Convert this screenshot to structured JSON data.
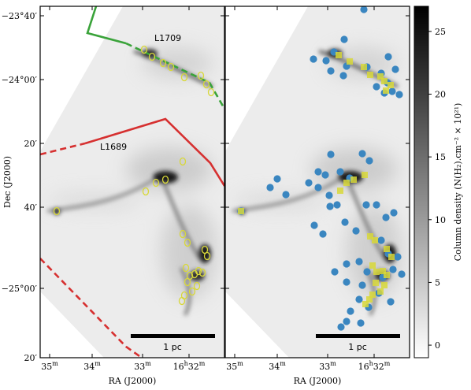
{
  "chart_data": {
    "type": "heatmap",
    "panels": [
      {
        "name": "left",
        "region_labels": [
          "L1709",
          "L1689"
        ],
        "scale_bar_label": "1 pc",
        "dense_cores": [
          [
            183,
            63
          ],
          [
            193,
            72
          ],
          [
            207,
            80
          ],
          [
            217,
            85
          ],
          [
            234,
            98
          ],
          [
            255,
            96
          ],
          [
            262,
            107
          ],
          [
            268,
            117
          ],
          [
            232,
            205
          ],
          [
            210,
            228
          ],
          [
            198,
            232
          ],
          [
            185,
            243
          ],
          [
            72,
            268
          ],
          [
            232,
            297
          ],
          [
            238,
            308
          ],
          [
            260,
            317
          ],
          [
            263,
            325
          ],
          [
            236,
            340
          ],
          [
            241,
            350
          ],
          [
            247,
            348
          ],
          [
            252,
            344
          ],
          [
            257,
            346
          ],
          [
            238,
            358
          ],
          [
            250,
            363
          ],
          [
            244,
            370
          ],
          [
            234,
            375
          ],
          [
            231,
            382
          ]
        ]
      },
      {
        "name": "right",
        "scale_bar_label": "1 pc",
        "protostars": [
          [
            424,
            66
          ],
          [
            437,
            50
          ],
          [
            398,
            75
          ],
          [
            414,
            77
          ],
          [
            420,
            90
          ],
          [
            440,
            84
          ],
          [
            436,
            96
          ],
          [
            466,
            85
          ],
          [
            493,
            72
          ],
          [
            502,
            88
          ],
          [
            484,
            93
          ],
          [
            492,
            105
          ],
          [
            498,
            116
          ],
          [
            488,
            118
          ],
          [
            478,
            110
          ],
          [
            507,
            120
          ],
          [
            462,
            12
          ],
          [
            420,
            196
          ],
          [
            432,
            218
          ],
          [
            444,
            226
          ],
          [
            460,
            195
          ],
          [
            469,
            204
          ],
          [
            404,
            218
          ],
          [
            413,
            222
          ],
          [
            404,
            238
          ],
          [
            418,
            248
          ],
          [
            428,
            260
          ],
          [
            419,
            262
          ],
          [
            392,
            232
          ],
          [
            363,
            247
          ],
          [
            352,
            227
          ],
          [
            343,
            238
          ],
          [
            399,
            286
          ],
          [
            410,
            297
          ],
          [
            438,
            282
          ],
          [
            452,
            293
          ],
          [
            465,
            260
          ],
          [
            478,
            260
          ],
          [
            490,
            276
          ],
          [
            500,
            270
          ],
          [
            484,
            305
          ],
          [
            493,
            322
          ],
          [
            505,
            326
          ],
          [
            499,
            342
          ],
          [
            510,
            348
          ],
          [
            486,
            352
          ],
          [
            466,
            345
          ],
          [
            456,
            332
          ],
          [
            440,
            335
          ],
          [
            425,
            345
          ],
          [
            440,
            358
          ],
          [
            460,
            362
          ],
          [
            456,
            380
          ],
          [
            468,
            390
          ],
          [
            481,
            372
          ],
          [
            496,
            383
          ],
          [
            445,
            395
          ],
          [
            458,
            410
          ],
          [
            440,
            408
          ],
          [
            433,
            415
          ],
          [
            306,
            268
          ]
        ],
        "dense_cores": [
          [
            430,
            70
          ],
          [
            444,
            78
          ],
          [
            462,
            85
          ],
          [
            470,
            95
          ],
          [
            483,
            97
          ],
          [
            488,
            103
          ],
          [
            496,
            108
          ],
          [
            490,
            115
          ],
          [
            463,
            222
          ],
          [
            449,
            228
          ],
          [
            440,
            232
          ],
          [
            432,
            242
          ],
          [
            306,
            268
          ],
          [
            470,
            300
          ],
          [
            476,
            305
          ],
          [
            491,
            316
          ],
          [
            497,
            326
          ],
          [
            473,
            337
          ],
          [
            478,
            345
          ],
          [
            486,
            344
          ],
          [
            491,
            349
          ],
          [
            477,
            359
          ],
          [
            488,
            362
          ],
          [
            483,
            370
          ],
          [
            473,
            374
          ],
          [
            469,
            380
          ],
          [
            464,
            386
          ]
        ]
      }
    ],
    "x_axis": {
      "title": "RA (J2000)",
      "ticks": [
        {
          "label": "35",
          "sup": "m"
        },
        {
          "label": "34",
          "sup": "m"
        },
        {
          "label": "33",
          "sup": "m"
        },
        {
          "label": "16",
          "sup": "h",
          "label2": "32",
          "sup2": "m"
        }
      ]
    },
    "y_axis": {
      "title": "Dec (J2000)",
      "ticks": [
        {
          "label": "−23°40′"
        },
        {
          "label": "−24°00′"
        },
        {
          "label": "20′"
        },
        {
          "label": "40′"
        },
        {
          "label": "−25°00′"
        },
        {
          "label": "20′"
        }
      ]
    },
    "colorbar": {
      "label": "Column density (N(H₂).cm⁻² × 10²¹)",
      "range": [
        -1,
        27
      ],
      "ticks": [
        0,
        5,
        10,
        15,
        20,
        25
      ]
    },
    "colors": {
      "protostar": "#3a86c0",
      "dense_core": "#d8d83a",
      "l1709_boundary": "#3aa33a",
      "l1689_boundary": "#d63030",
      "scale_bar": "#000000"
    }
  }
}
